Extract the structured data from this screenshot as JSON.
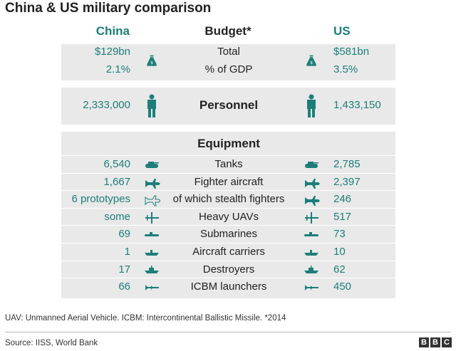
{
  "title": "China & US military comparison",
  "columns": {
    "left": "China",
    "center": "Budget*",
    "right": "US"
  },
  "budget": [
    {
      "label": "Total",
      "china": "$129bn",
      "us": "$581bn"
    },
    {
      "label": "% of GDP",
      "china": "2.1%",
      "us": "3.5%"
    }
  ],
  "budget_icon": "money-bag-icon",
  "personnel": {
    "label": "Personnel",
    "china": "2,333,000",
    "us": "1,433,150",
    "icon": "soldier-icon"
  },
  "equipment_heading": "Equipment",
  "equipment": [
    {
      "label": "Tanks",
      "china": "6,540",
      "us": "2,785",
      "icon": "tank"
    },
    {
      "label": "Fighter aircraft",
      "china": "1,667",
      "us": "2,397",
      "icon": "fighter"
    },
    {
      "label": "of which stealth fighters",
      "china": "6 prototypes",
      "us": "246",
      "icon": "stealth"
    },
    {
      "label": "Heavy UAVs",
      "china": "some",
      "us": "517",
      "icon": "uav"
    },
    {
      "label": "Submarines",
      "china": "69",
      "us": "73",
      "icon": "submarine"
    },
    {
      "label": "Aircraft carriers",
      "china": "1",
      "us": "10",
      "icon": "carrier"
    },
    {
      "label": "Destroyers",
      "china": "17",
      "us": "62",
      "icon": "destroyer"
    },
    {
      "label": "ICBM launchers",
      "china": "66",
      "us": "450",
      "icon": "missile"
    }
  ],
  "footnote": "UAV: Unmanned Aerial Vehicle. ICBM: Intercontinental Ballistic Missile. *2014",
  "source": "Source: IISS, World Bank",
  "logo": "BBC",
  "colors": {
    "accent": "#1c7e7a",
    "panel": "#e9e9e9"
  },
  "chart_data": {
    "type": "table",
    "title": "China & US military comparison",
    "columns": [
      "China",
      "",
      "US"
    ],
    "rows": [
      [
        "$129bn",
        "Total",
        "$581bn"
      ],
      [
        "2.1%",
        "% of GDP",
        "3.5%"
      ],
      [
        "2,333,000",
        "Personnel",
        "1,433,150"
      ],
      [
        "6,540",
        "Tanks",
        "2,785"
      ],
      [
        "1,667",
        "Fighter aircraft",
        "2,397"
      ],
      [
        "6 prototypes",
        "of which stealth fighters",
        "246"
      ],
      [
        "some",
        "Heavy UAVs",
        "517"
      ],
      [
        "69",
        "Submarines",
        "73"
      ],
      [
        "1",
        "Aircraft carriers",
        "10"
      ],
      [
        "17",
        "Destroyers",
        "62"
      ],
      [
        "66",
        "ICBM launchers",
        "450"
      ]
    ]
  }
}
